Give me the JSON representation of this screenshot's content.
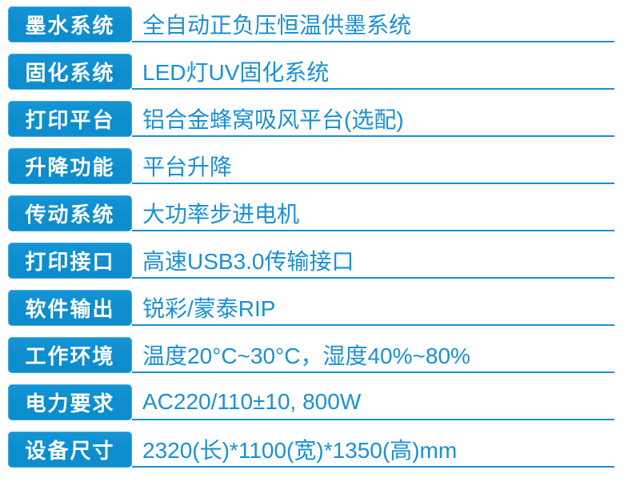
{
  "spec_table": {
    "rows": [
      {
        "label": "墨水系统",
        "value": "全自动正负压恒温供墨系统"
      },
      {
        "label": "固化系统",
        "value": "LED灯UV固化系统"
      },
      {
        "label": "打印平台",
        "value": "铝合金蜂窝吸风平台(选配)"
      },
      {
        "label": "升降功能",
        "value": "平台升降"
      },
      {
        "label": "传动系统",
        "value": "大功率步进电机"
      },
      {
        "label": "打印接口",
        "value": "高速USB3.0传输接口"
      },
      {
        "label": "软件输出",
        "value": "锐彩/蒙泰RIP"
      },
      {
        "label": "工作环境",
        "value": "温度20°C~30°C，湿度40%~80%"
      },
      {
        "label": "电力要求",
        "value": "AC220/110±10, 800W"
      },
      {
        "label": "设备尺寸",
        "value": "2320(长)*1100(宽)*1350(高)mm"
      }
    ]
  },
  "colors": {
    "page_bg": "#ffffff",
    "label_bg": "#0d8dce",
    "label_bg_light": "#1495d6",
    "label_text": "#ffffff",
    "value_text": "#1a90d5",
    "underline": "#1a8fd0"
  }
}
